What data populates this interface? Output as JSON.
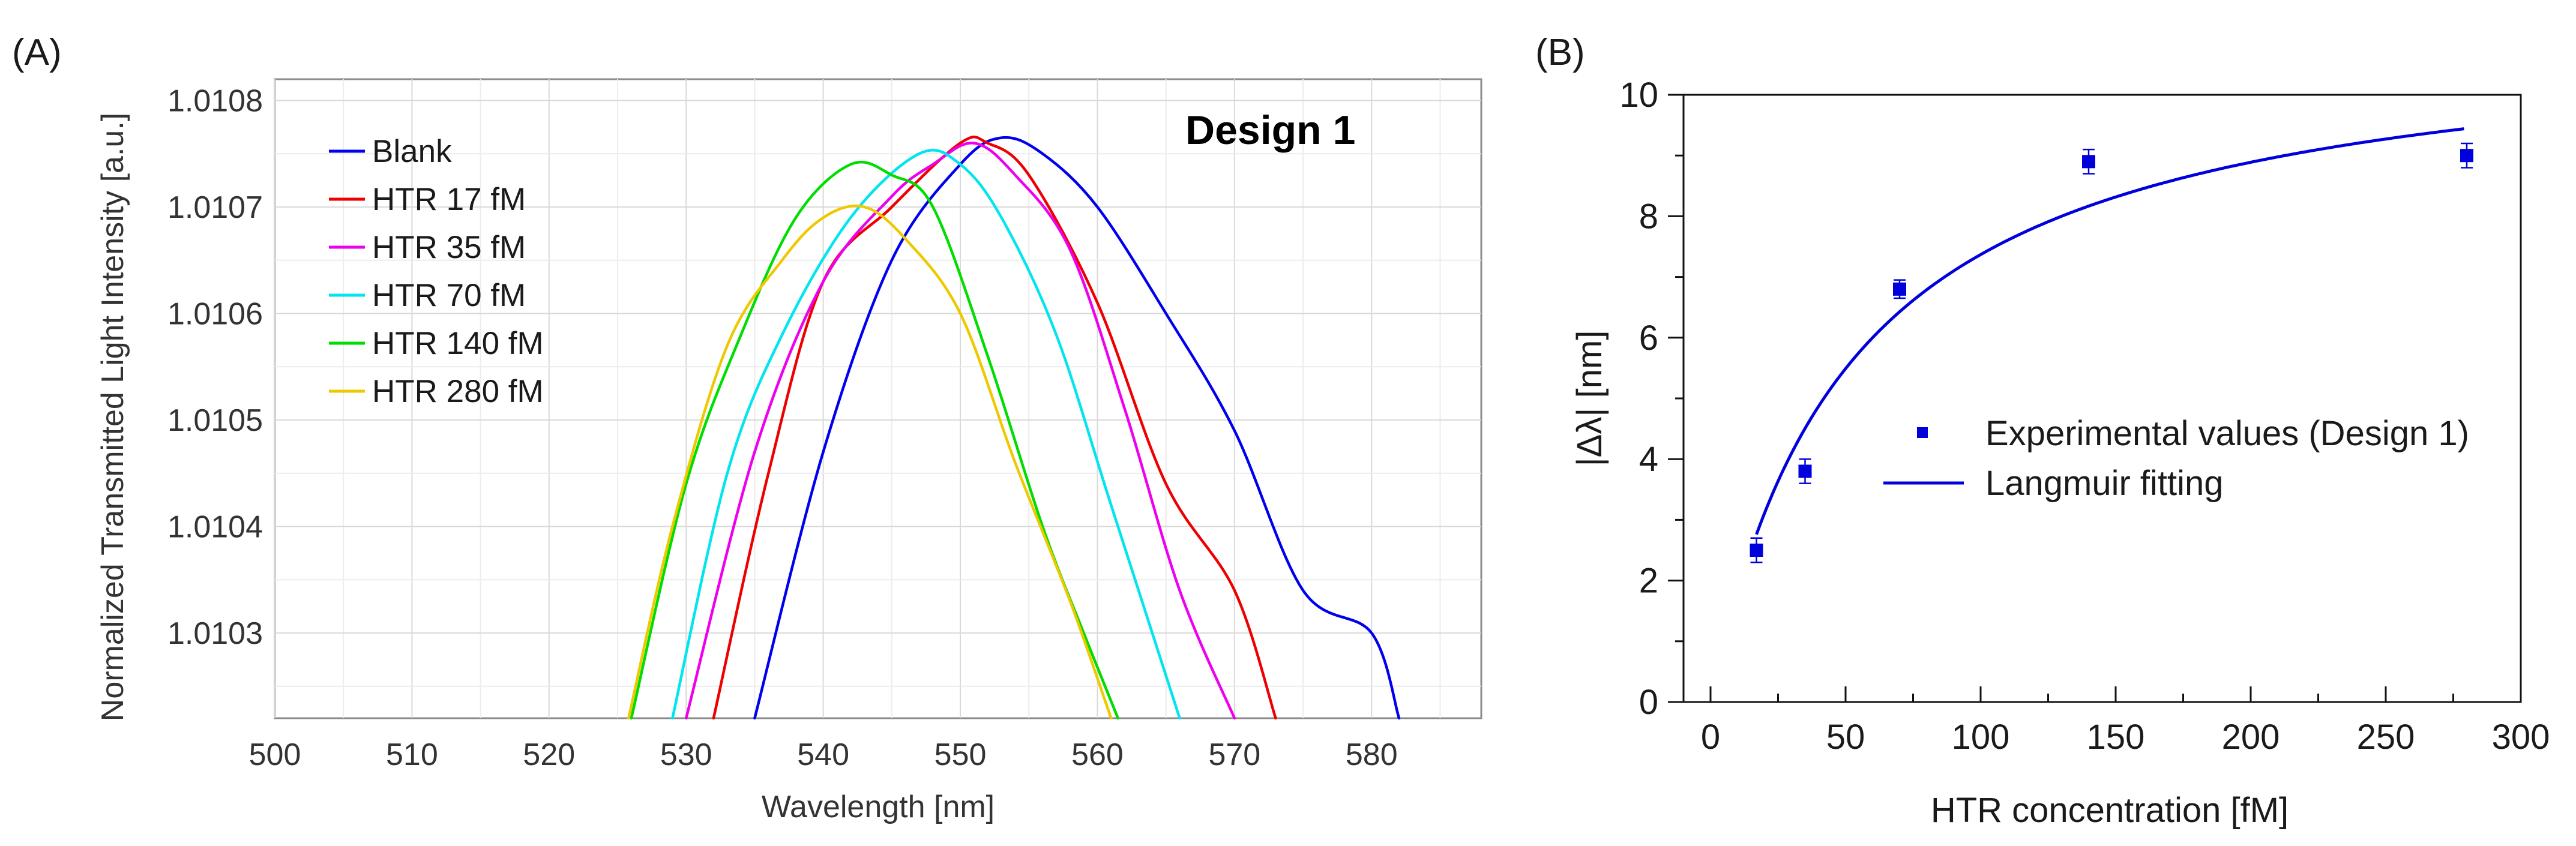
{
  "panel_labels": {
    "a": "(A)",
    "b": "(B)"
  },
  "design_label": "Design 1",
  "chart_data": [
    {
      "type": "line",
      "panel": "(A)",
      "title": "",
      "xlabel": "Wavelength [nm]",
      "ylabel": "Normalized Transmitted Light Intensity [a.u.]",
      "xlim": [
        500,
        588
      ],
      "ylim": [
        1.01022,
        1.01082
      ],
      "xticks": [
        500,
        510,
        520,
        530,
        540,
        550,
        560,
        570,
        580
      ],
      "yticks": [
        1.0103,
        1.0104,
        1.0105,
        1.0106,
        1.0107,
        1.0108
      ],
      "ytick_labels": [
        "1.0103",
        "1.0104",
        "1.0105",
        "1.0106",
        "1.0107",
        "1.0108"
      ],
      "grid": true,
      "legend_position": "top-left",
      "annotation": "Design 1",
      "series": [
        {
          "name": "Blank",
          "color": "#0000ee",
          "x": [
            535,
            540,
            545,
            550,
            553,
            556,
            560,
            565,
            570,
            575,
            580,
            582
          ],
          "y": [
            1.01022,
            1.01047,
            1.01065,
            1.01074,
            1.010765,
            1.01075,
            1.0107,
            1.0106,
            1.01049,
            1.01034,
            1.0103,
            1.01022
          ]
        },
        {
          "name": "HTR 17 fM",
          "color": "#ee0000",
          "x": [
            532,
            536,
            540,
            545,
            550,
            552,
            555,
            560,
            565,
            570,
            573
          ],
          "y": [
            1.01022,
            1.01045,
            1.01063,
            1.0107,
            1.01076,
            1.01076,
            1.01073,
            1.01061,
            1.01044,
            1.01034,
            1.01022
          ]
        },
        {
          "name": "HTR 35 fM",
          "color": "#ee00ee",
          "x": [
            530,
            535,
            540,
            545,
            548,
            551,
            554,
            558,
            562,
            566,
            570
          ],
          "y": [
            1.01022,
            1.01047,
            1.01063,
            1.01071,
            1.01074,
            1.01076,
            1.01073,
            1.01066,
            1.01051,
            1.01034,
            1.01022
          ]
        },
        {
          "name": "HTR 70 fM",
          "color": "#00e5ee",
          "x": [
            529,
            533,
            537,
            542,
            547,
            550,
            553,
            557,
            561,
            566
          ],
          "y": [
            1.01022,
            1.01045,
            1.01058,
            1.01069,
            1.01075,
            1.01074,
            1.01069,
            1.01058,
            1.01042,
            1.01022
          ]
        },
        {
          "name": "HTR 140 fM",
          "color": "#00dd00",
          "x": [
            526,
            530,
            534,
            538,
            542,
            545,
            548,
            552,
            556,
            559,
            561.5
          ],
          "y": [
            1.01022,
            1.01044,
            1.01058,
            1.01069,
            1.01074,
            1.01073,
            1.0107,
            1.01056,
            1.0104,
            1.0103,
            1.01022
          ]
        },
        {
          "name": "HTR 280 fM",
          "color": "#eec900",
          "x": [
            525.8,
            529,
            533,
            537,
            540,
            543,
            546,
            550,
            554,
            558,
            561
          ],
          "y": [
            1.01022,
            1.0104,
            1.01057,
            1.01065,
            1.01069,
            1.0107,
            1.01067,
            1.0106,
            1.01046,
            1.01033,
            1.01022
          ]
        }
      ]
    },
    {
      "type": "scatter",
      "panel": "(B)",
      "title": "",
      "xlabel": "HTR concentration [fM]",
      "ylabel": "|Δλ| [nm]",
      "xlim": [
        -10,
        300
      ],
      "ylim": [
        0,
        10
      ],
      "xticks": [
        0,
        50,
        100,
        150,
        200,
        250,
        300
      ],
      "yticks": [
        0,
        2,
        4,
        6,
        8,
        10
      ],
      "grid": false,
      "legend_position": "center-right",
      "series": [
        {
          "name": "Experimental values (Design 1)",
          "kind": "scatter",
          "color": "#0000dd",
          "x": [
            17,
            35,
            70,
            140,
            280
          ],
          "y": [
            2.5,
            3.8,
            6.8,
            8.9,
            9.0
          ],
          "yerr": [
            0.2,
            0.2,
            0.15,
            0.2,
            0.2
          ]
        },
        {
          "name": "Langmuir fitting",
          "kind": "line",
          "color": "#0000dd",
          "function": "langmuir",
          "max": 11.2,
          "kd": 52,
          "x_range": [
            17,
            280
          ]
        }
      ]
    }
  ]
}
